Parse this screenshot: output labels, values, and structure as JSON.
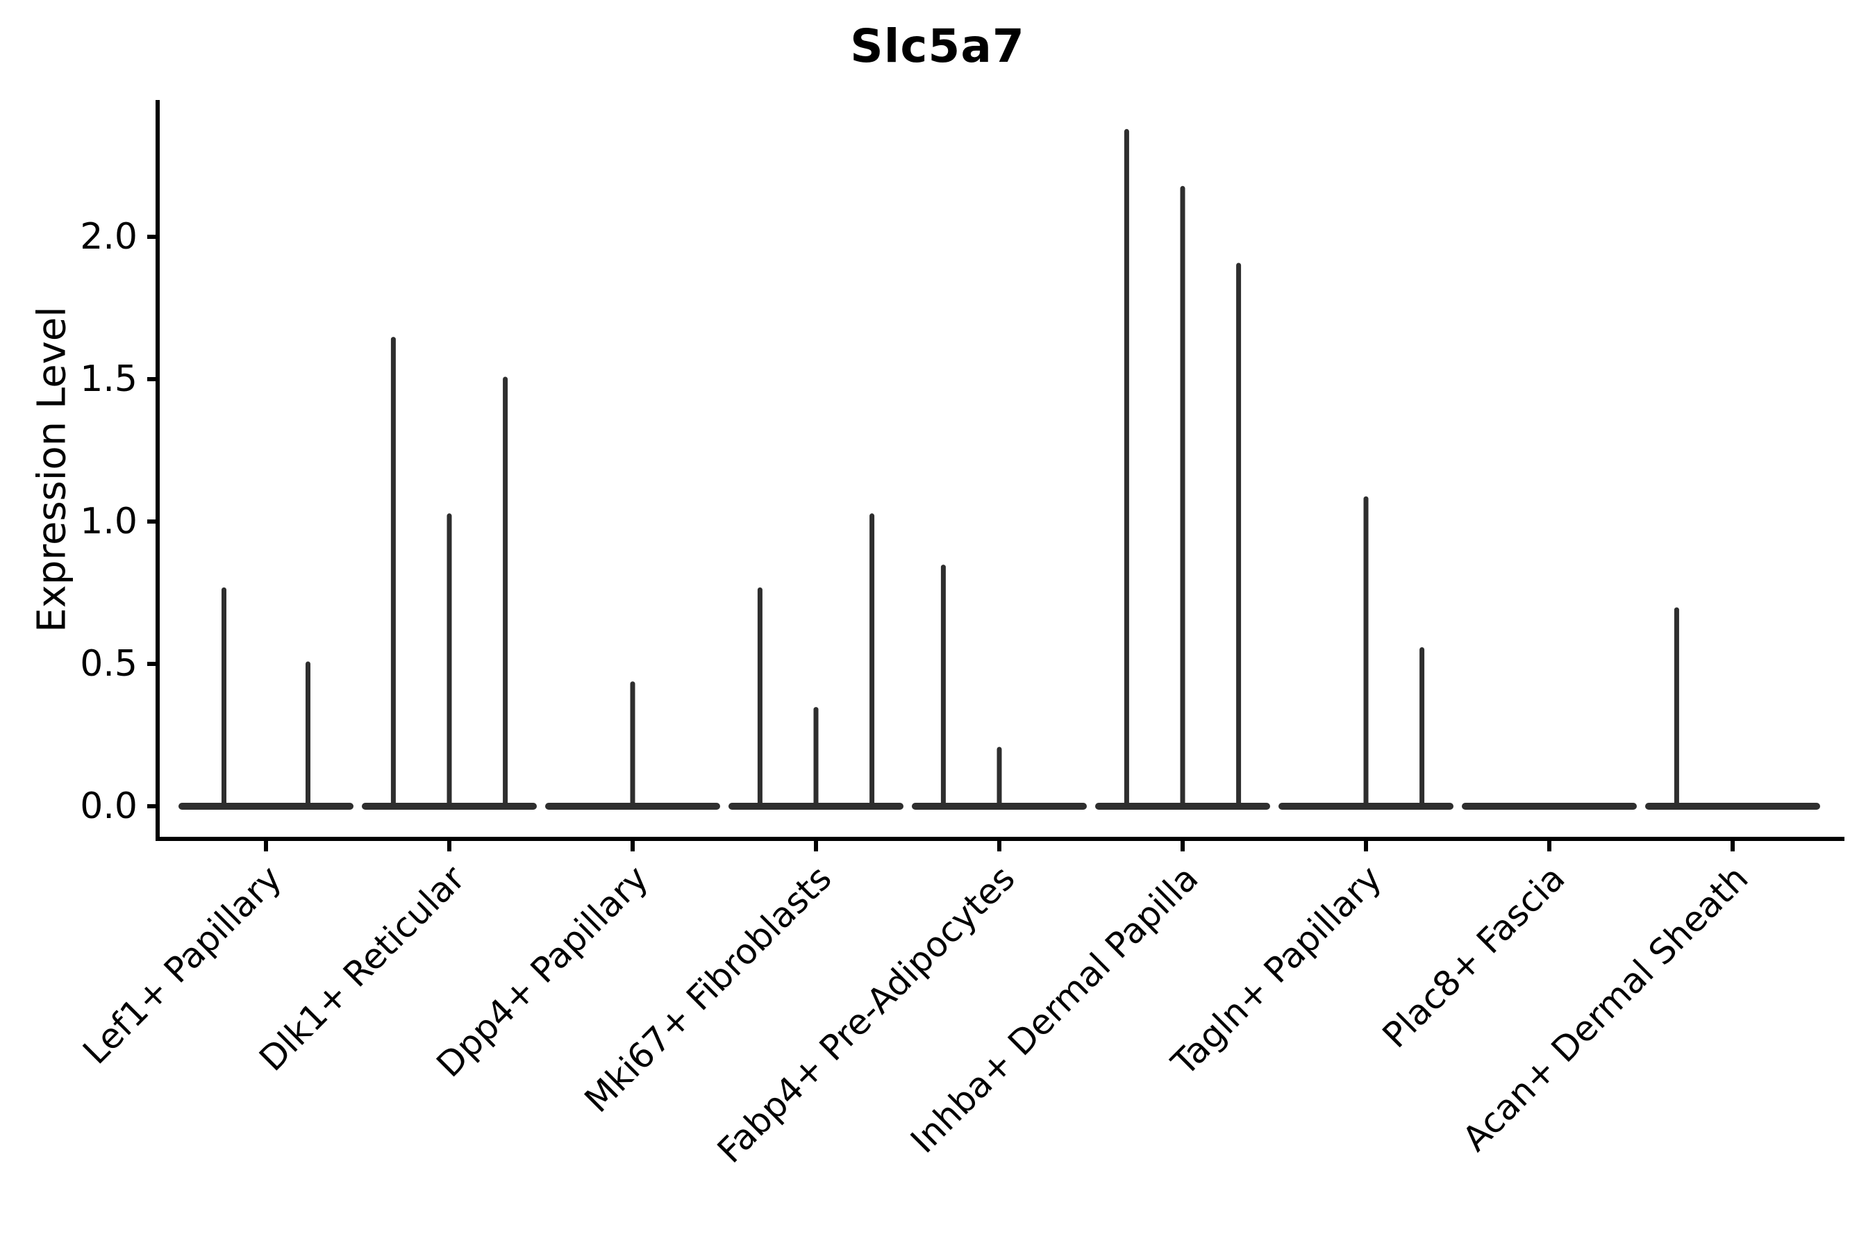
{
  "title": "Slc5a7",
  "chart_data": {
    "type": "violin",
    "style": "stacked-vlnplot-thin-spike-violins",
    "title": "Slc5a7",
    "xlabel": "",
    "ylabel": "Expression Level",
    "ytick_labels": [
      "0.0",
      "0.5",
      "1.0",
      "1.5",
      "2.0"
    ],
    "yticks": [
      0.0,
      0.5,
      1.0,
      1.5,
      2.0
    ],
    "ylim": [
      -0.12,
      2.48
    ],
    "grid": false,
    "legend_position": "none",
    "axis_color": "#000000",
    "violin_color": "#2e2e2e",
    "categories": [
      {
        "label": "Lef1+ Papillary",
        "violins": [
          {
            "pos": -0.25,
            "max": 0.76
          },
          {
            "pos": 0.25,
            "max": 0.5
          }
        ]
      },
      {
        "label": "Dlk1+ Reticular",
        "violins": [
          {
            "pos": -0.333,
            "max": 1.64
          },
          {
            "pos": 0.0,
            "max": 1.02
          },
          {
            "pos": 0.333,
            "max": 1.5
          }
        ]
      },
      {
        "label": "Dpp4+ Papillary",
        "violins": [
          {
            "pos": -0.333,
            "max": 0.0
          },
          {
            "pos": 0.0,
            "max": 0.43
          },
          {
            "pos": 0.333,
            "max": 0.0
          }
        ]
      },
      {
        "label": "Mki67+ Fibroblasts",
        "violins": [
          {
            "pos": -0.333,
            "max": 0.76
          },
          {
            "pos": 0.0,
            "max": 0.34
          },
          {
            "pos": 0.333,
            "max": 1.02
          }
        ]
      },
      {
        "label": "Fabp4+ Pre-Adipocytes",
        "violins": [
          {
            "pos": -0.333,
            "max": 0.84
          },
          {
            "pos": 0.0,
            "max": 0.2
          },
          {
            "pos": 0.333,
            "max": 0.0
          }
        ]
      },
      {
        "label": "Inhba+ Dermal Papilla",
        "violins": [
          {
            "pos": -0.333,
            "max": 2.37
          },
          {
            "pos": 0.0,
            "max": 2.17
          },
          {
            "pos": 0.333,
            "max": 1.9
          }
        ]
      },
      {
        "label": "Tagln+ Papillary",
        "violins": [
          {
            "pos": -0.333,
            "max": 0.0
          },
          {
            "pos": 0.0,
            "max": 1.08
          },
          {
            "pos": 0.333,
            "max": 0.55
          }
        ]
      },
      {
        "label": "Plac8+ Fascia",
        "violins": [
          {
            "pos": -0.333,
            "max": 0.0
          },
          {
            "pos": 0.0,
            "max": 0.0
          },
          {
            "pos": 0.333,
            "max": 0.0
          }
        ]
      },
      {
        "label": "Acan+ Dermal Sheath",
        "violins": [
          {
            "pos": -0.333,
            "max": 0.69
          },
          {
            "pos": 0.0,
            "max": 0.0
          },
          {
            "pos": 0.333,
            "max": 0.0
          }
        ]
      }
    ]
  }
}
